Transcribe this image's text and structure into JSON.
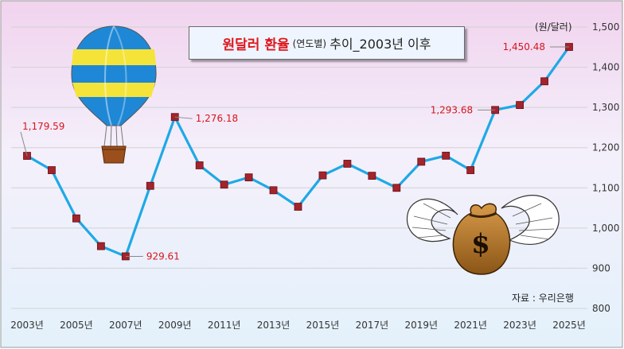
{
  "chart_data": {
    "type": "line",
    "title": "원달러 환율",
    "subtitle": "(연도별)",
    "title_suffix": "추이_2003년 이후",
    "unit_label": "(원/달러)",
    "source": "자료 : 우리은행",
    "x": [
      2003,
      2004,
      2005,
      2006,
      2007,
      2008,
      2009,
      2010,
      2011,
      2012,
      2013,
      2014,
      2015,
      2016,
      2017,
      2018,
      2019,
      2020,
      2021,
      2022,
      2023,
      2024,
      2025
    ],
    "x_tick_labels": [
      "2003년",
      "2005년",
      "2007년",
      "2009년",
      "2011년",
      "2013년",
      "2015년",
      "2017년",
      "2019년",
      "2021년",
      "2023년",
      "2025년"
    ],
    "x_ticks": [
      2003,
      2005,
      2007,
      2009,
      2011,
      2013,
      2015,
      2017,
      2019,
      2021,
      2023,
      2025
    ],
    "y_tick_labels": [
      "800",
      "900",
      "1,000",
      "1,100",
      "1,200",
      "1,300",
      "1,400",
      "1,500"
    ],
    "y_ticks": [
      800,
      900,
      1000,
      1100,
      1200,
      1300,
      1400,
      1500
    ],
    "ylim": [
      800,
      1500
    ],
    "grid": true,
    "series": [
      {
        "values": [
          1179.59,
          1144,
          1024,
          955,
          929.61,
          1105,
          1276.18,
          1156,
          1108,
          1126,
          1094,
          1053,
          1131,
          1160,
          1130,
          1100,
          1165,
          1180,
          1144,
          1293.68,
          1306,
          1365,
          1450.48
        ],
        "color": "#1ea9e6",
        "marker_color": "#a3242c"
      }
    ],
    "annotations": [
      {
        "x": 2003,
        "value": 1179.59,
        "text": "1,179.59"
      },
      {
        "x": 2007,
        "value": 929.61,
        "text": "929.61"
      },
      {
        "x": 2009,
        "value": 1276.18,
        "text": "1,276.18"
      },
      {
        "x": 2022,
        "value": 1293.68,
        "text": "1,293.68"
      },
      {
        "x": 2025,
        "value": 1450.48,
        "text": "1,450.48"
      }
    ],
    "annotation_color": "#d7151c",
    "decorations": [
      "hot-air-balloon",
      "winged-money-bag"
    ]
  }
}
